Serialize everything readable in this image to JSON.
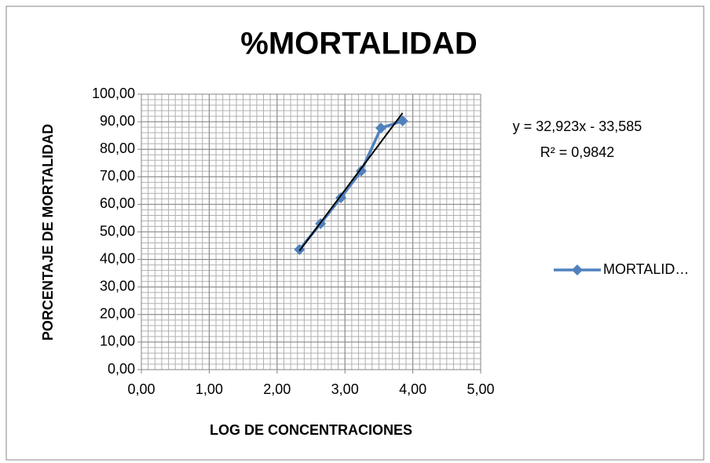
{
  "chart_data": {
    "type": "scatter",
    "title": "%MORTALIDAD",
    "xlabel": "LOG DE CONCENTRACIONES",
    "ylabel": "PORCENTAJE DE MORTALIDAD",
    "x": [
      2.33,
      2.64,
      2.94,
      3.24,
      3.53,
      3.85
    ],
    "series": [
      {
        "name": "MORTALID…",
        "color": "#4f81bd",
        "values": [
          43.6,
          53.0,
          62.4,
          72.1,
          87.7,
          90.3
        ]
      }
    ],
    "xlim": [
      0,
      5
    ],
    "ylim": [
      0,
      100
    ],
    "xticks": [
      {
        "value": 0,
        "label": "0,00"
      },
      {
        "value": 1,
        "label": "1,00"
      },
      {
        "value": 2,
        "label": "2,00"
      },
      {
        "value": 3,
        "label": "3,00"
      },
      {
        "value": 4,
        "label": "4,00"
      },
      {
        "value": 5,
        "label": "5,00"
      }
    ],
    "yticks": [
      {
        "value": 0,
        "label": "0,00"
      },
      {
        "value": 10,
        "label": "10,00"
      },
      {
        "value": 20,
        "label": "20,00"
      },
      {
        "value": 30,
        "label": "30,00"
      },
      {
        "value": 40,
        "label": "40,00"
      },
      {
        "value": 50,
        "label": "50,00"
      },
      {
        "value": 60,
        "label": "60,00"
      },
      {
        "value": 70,
        "label": "70,00"
      },
      {
        "value": 80,
        "label": "80,00"
      },
      {
        "value": 90,
        "label": "90,00"
      },
      {
        "value": 100,
        "label": "100,00"
      }
    ],
    "grid": true,
    "minor_xstep": 0.1,
    "minor_ystep": 2,
    "legend": "right",
    "trendline": {
      "slope": 32.923,
      "intercept": -33.585,
      "equation": "y = 32,923x - 33,585",
      "r2": "R² = 0,9842",
      "color": "#000000"
    }
  }
}
